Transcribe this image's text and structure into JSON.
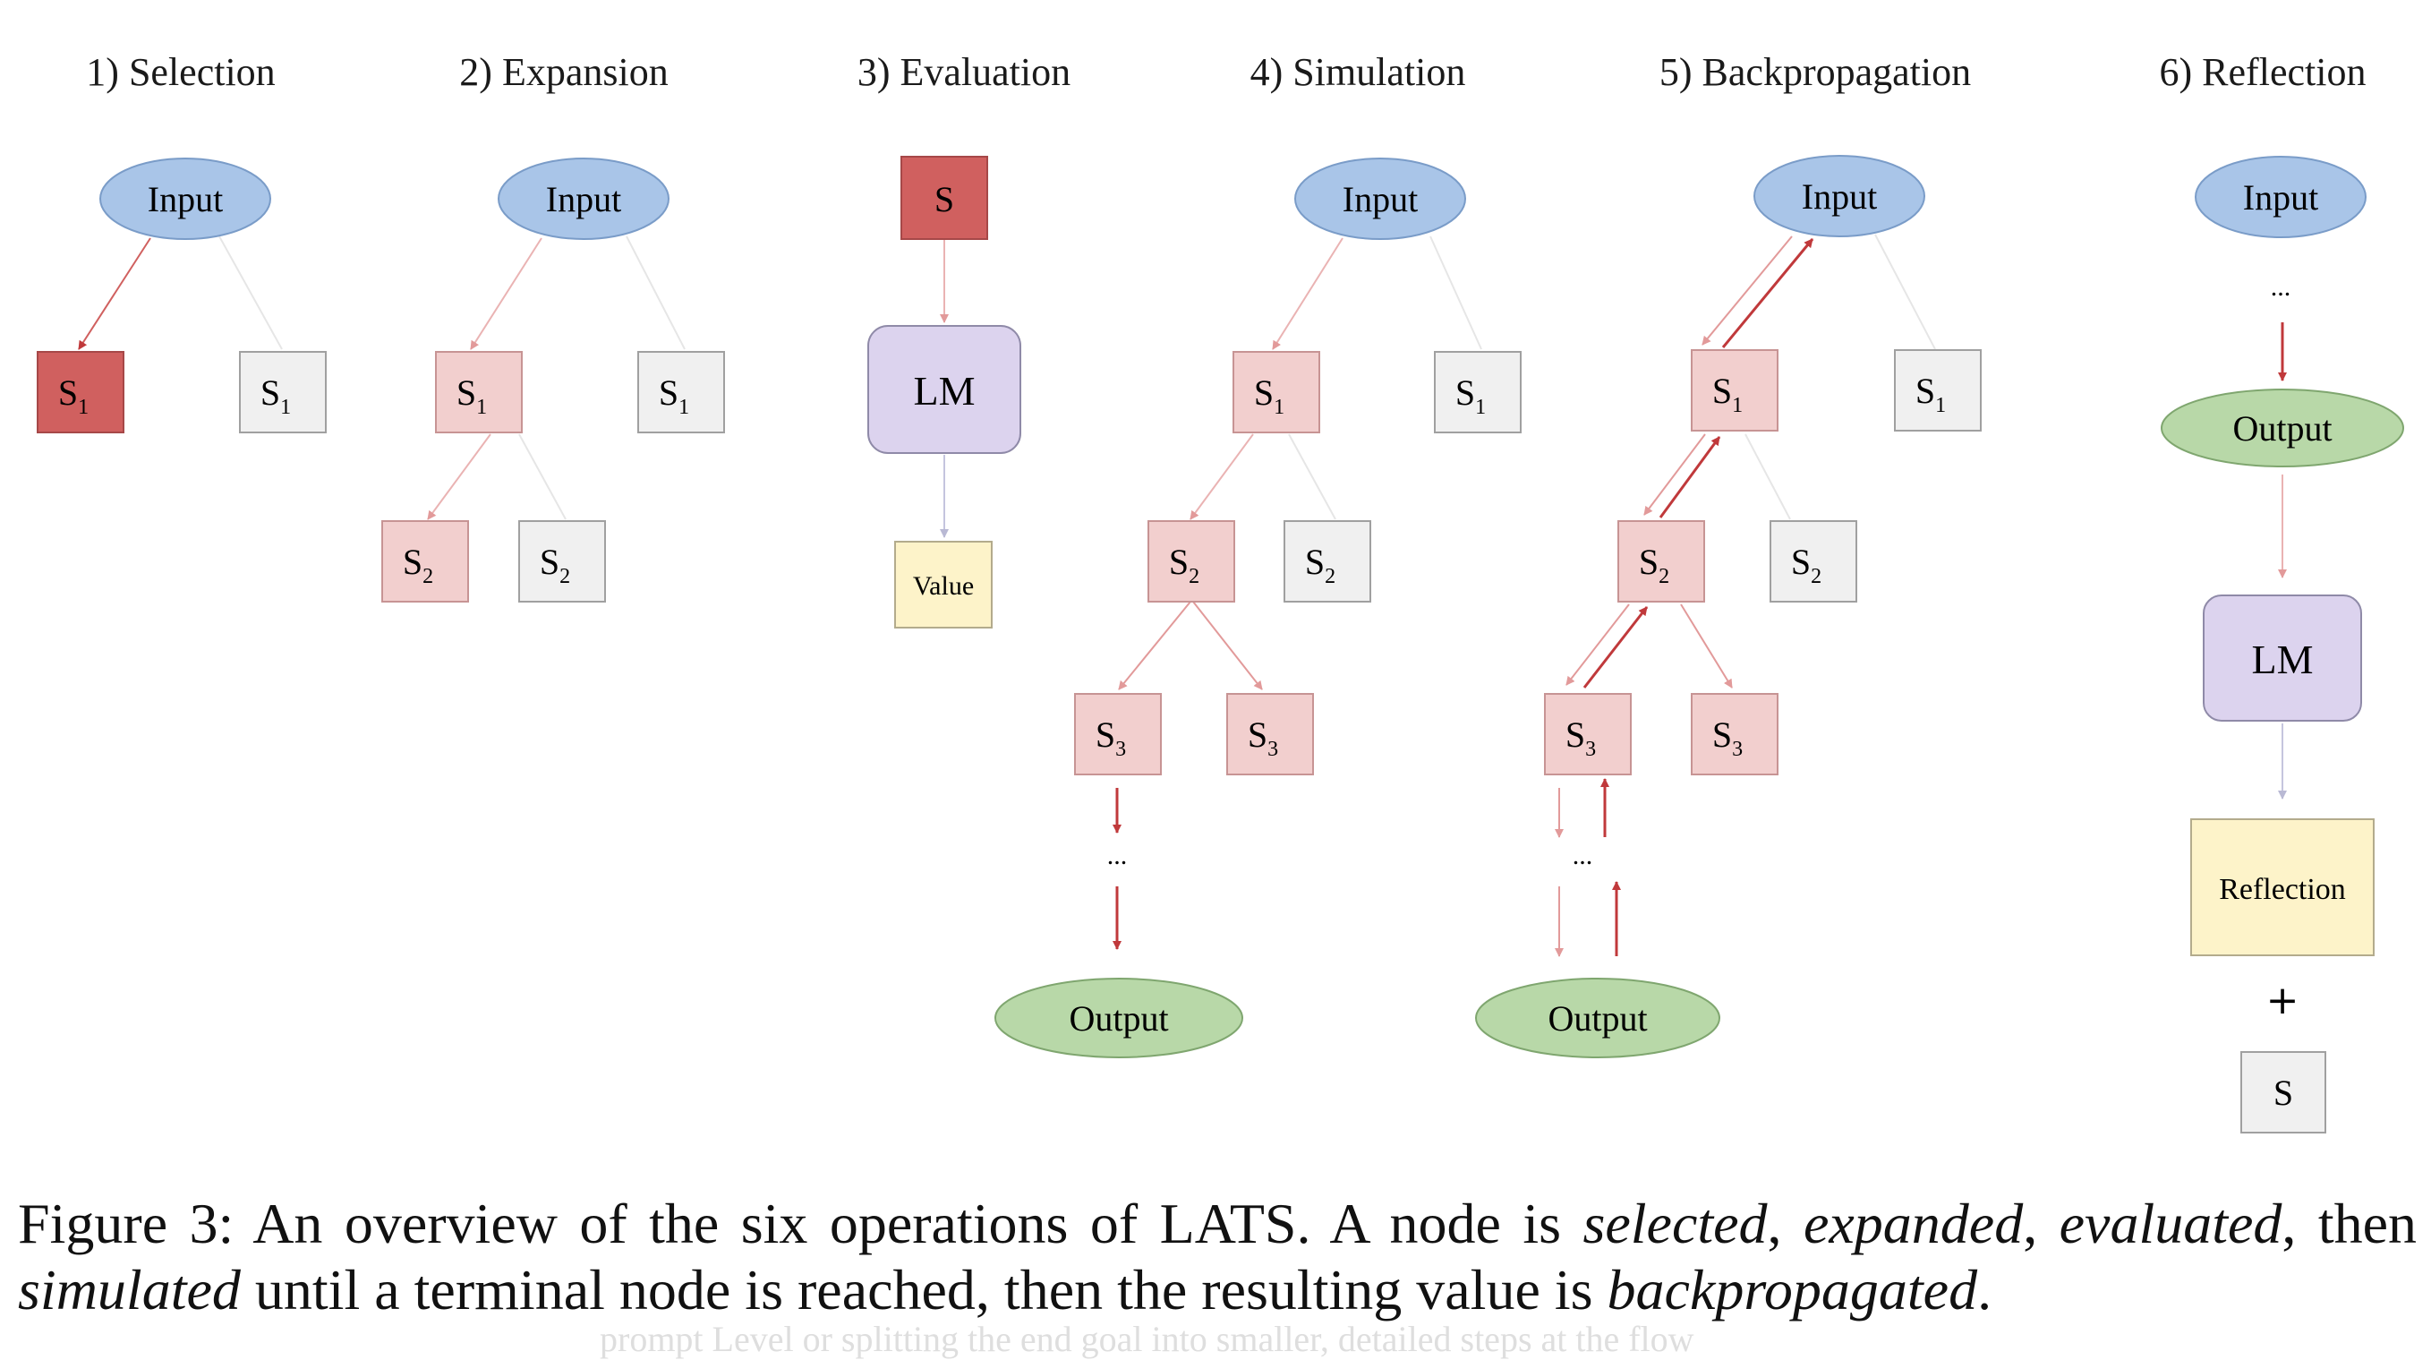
{
  "panels": [
    {
      "title": "1) Selection"
    },
    {
      "title": "2) Expansion"
    },
    {
      "title": "3) Evaluation"
    },
    {
      "title": "4) Simulation"
    },
    {
      "title": "5) Backpropagation"
    },
    {
      "title": "6) Reflection"
    }
  ],
  "labels": {
    "input": "Input",
    "output": "Output",
    "lm": "LM",
    "value": "Value",
    "reflection": "Reflection",
    "state": "S",
    "ellipsis": "...",
    "plus": "+"
  },
  "colors": {
    "input": "#a9c5e8",
    "output": "#b8d8a8",
    "lm": "#dcd3ee",
    "value": "#fdf3c9",
    "selected": "#d0605f",
    "visited": "#f2cfce",
    "plain": "#f0f0f0",
    "arrow_red": "#c0393b",
    "arrow_light": "#e8b4b4"
  },
  "caption": {
    "lead": "Figure 3:  An overview of the six operations of LATS. A node is ",
    "w1": "selected",
    "s1": ", ",
    "w2": "expanded",
    "s2": ", ",
    "w3": "evaluated",
    "s3": ", then ",
    "w4": "simulated",
    "s4": " until a terminal node is reached, then the resulting value is ",
    "w5": "backpropagated",
    "end": "."
  },
  "faded_text": "prompt Level or splitting the end goal into smaller, detailed steps at the flow"
}
